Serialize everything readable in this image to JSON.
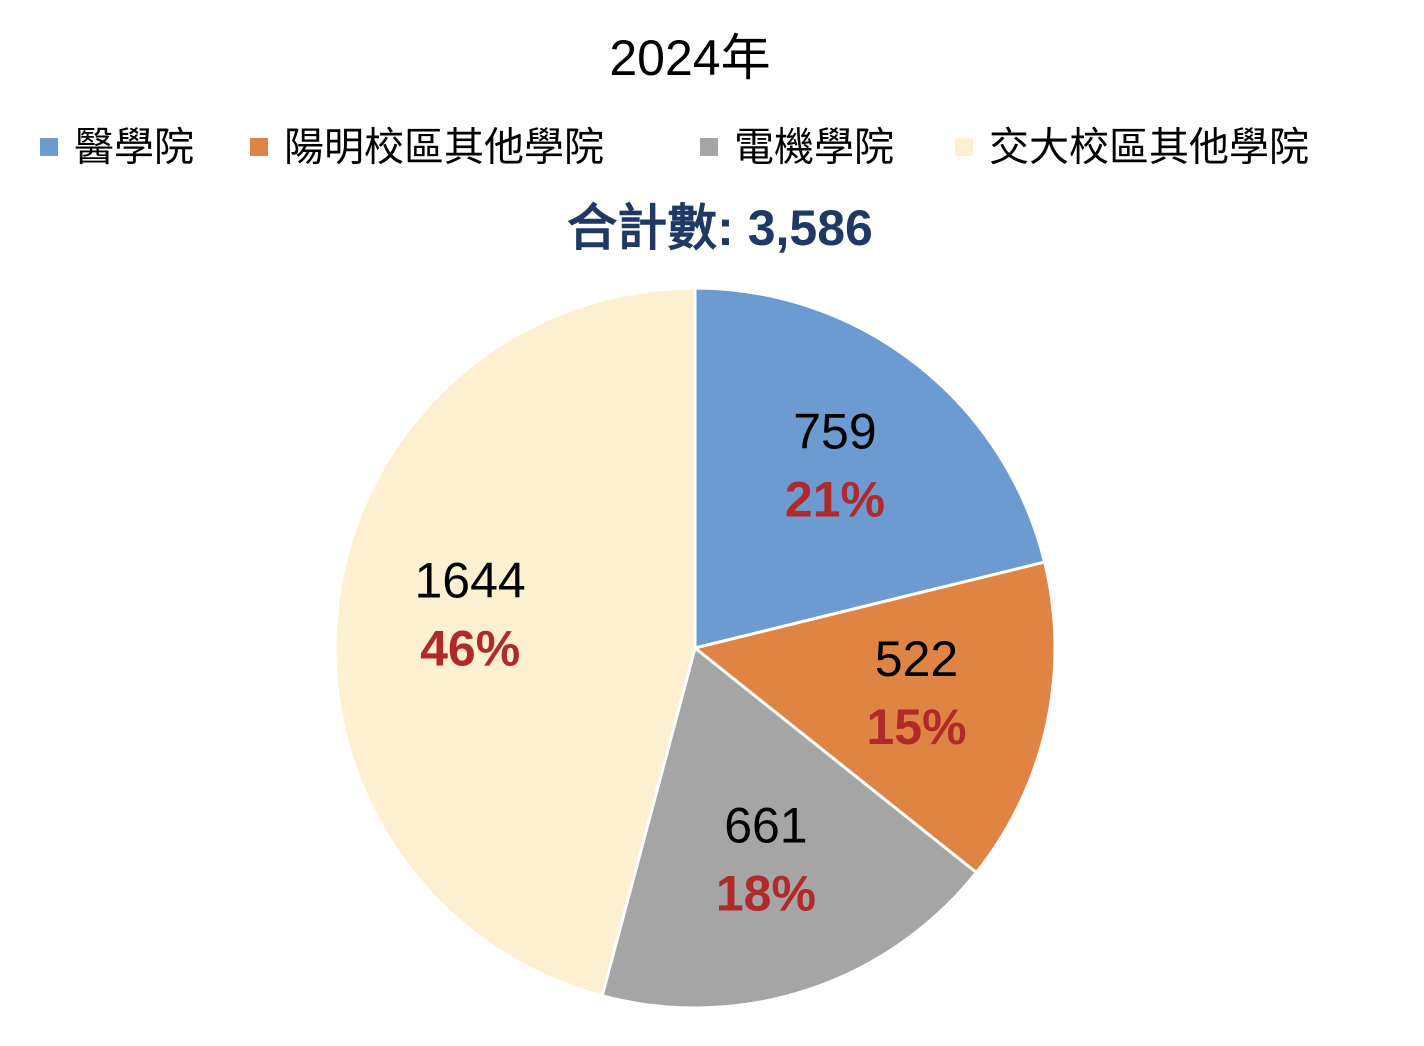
{
  "chart_data": {
    "type": "pie",
    "title": "2024年",
    "subtitle": "合計數: 3,586",
    "categories": [
      "醫學院",
      "陽明校區其他學院",
      "電機學院",
      "交大校區其他學院"
    ],
    "values": [
      759,
      522,
      661,
      1644
    ],
    "percent_labels": [
      "21%",
      "15%",
      "18%",
      "46%"
    ],
    "colors": [
      "#6b9bd1",
      "#e08444",
      "#a5a5a5",
      "#fcf0d0"
    ],
    "legend": "top"
  }
}
